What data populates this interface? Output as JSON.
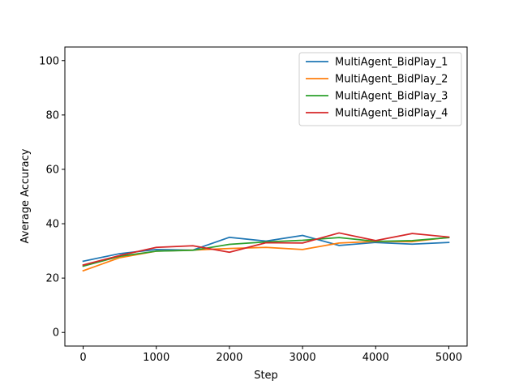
{
  "chart_data": {
    "type": "line",
    "title": "",
    "xlabel": "Step",
    "ylabel": "Average Accuracy",
    "xlim": [
      -250,
      5250
    ],
    "ylim": [
      -5,
      105
    ],
    "xticks": [
      0,
      1000,
      2000,
      3000,
      4000,
      5000
    ],
    "yticks": [
      0,
      20,
      40,
      60,
      80,
      100
    ],
    "xtick_labels": [
      "0",
      "1000",
      "2000",
      "3000",
      "4000",
      "5000"
    ],
    "ytick_labels": [
      "0",
      "20",
      "40",
      "60",
      "80",
      "100"
    ],
    "grid": false,
    "legend_position": "top-right",
    "x": [
      0,
      500,
      1000,
      1500,
      2000,
      2500,
      3000,
      3500,
      4000,
      4500,
      5000
    ],
    "series": [
      {
        "name": "MultiAgent_BidPlay_1",
        "color": "#1f77b4",
        "values": [
          26.2,
          29.0,
          30.5,
          30.3,
          35.0,
          33.6,
          35.7,
          32.0,
          33.1,
          32.5,
          33.1
        ]
      },
      {
        "name": "MultiAgent_BidPlay_2",
        "color": "#ff7f0e",
        "values": [
          22.7,
          27.5,
          29.9,
          30.3,
          30.9,
          31.3,
          30.5,
          32.9,
          33.5,
          33.4,
          35.0
        ]
      },
      {
        "name": "MultiAgent_BidPlay_3",
        "color": "#2ca02c",
        "values": [
          24.4,
          28.0,
          29.9,
          30.2,
          32.4,
          33.3,
          33.9,
          34.9,
          33.5,
          33.8,
          34.9
        ]
      },
      {
        "name": "MultiAgent_BidPlay_4",
        "color": "#d62728",
        "values": [
          24.8,
          28.3,
          31.3,
          31.9,
          29.5,
          33.0,
          32.9,
          36.6,
          33.8,
          36.4,
          35.1
        ]
      }
    ]
  }
}
